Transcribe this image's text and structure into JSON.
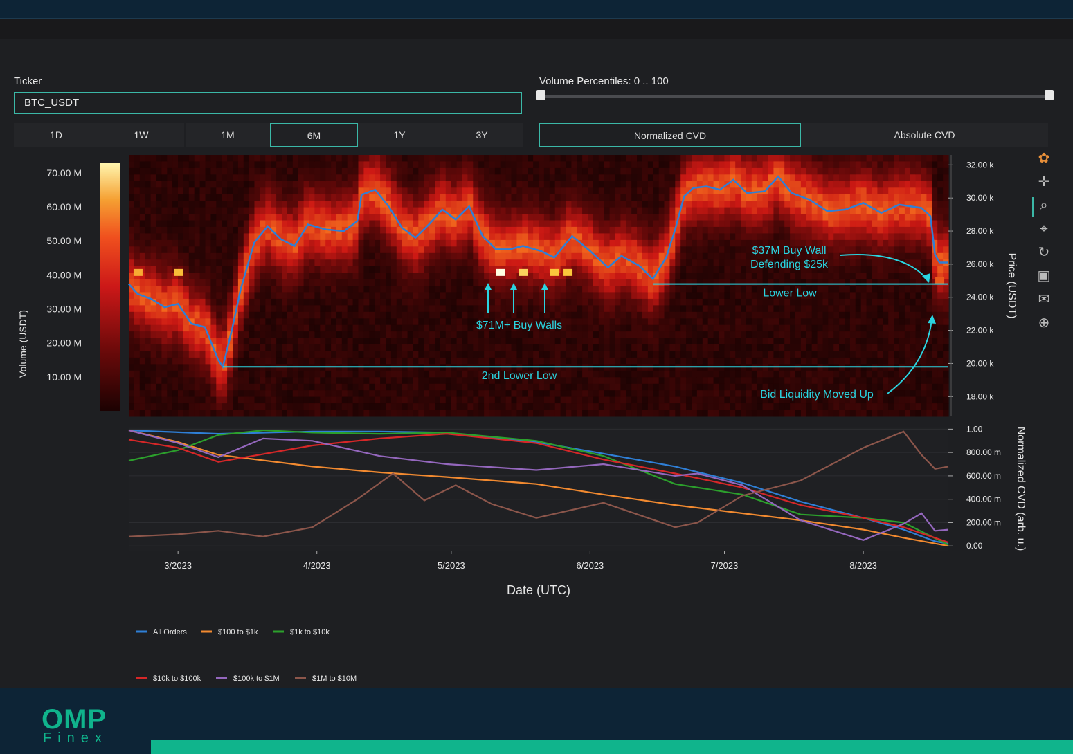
{
  "ticker": {
    "label": "Ticker",
    "value": "BTC_USDT"
  },
  "ranges": [
    "1D",
    "1W",
    "1M",
    "6M",
    "1Y",
    "3Y"
  ],
  "active_range": "6M",
  "percentiles": {
    "label": "Volume Percentiles: 0 .. 100",
    "min": 0,
    "max": 100
  },
  "cvd_modes": [
    "Normalized CVD",
    "Absolute CVD"
  ],
  "active_cvd_mode": "Normalized CVD",
  "logo": {
    "brand": "OMP",
    "sub": "Finex"
  },
  "colors": {
    "accent": "#3bb8a7",
    "annotation": "#2ad4e0",
    "price": "#2f7fd6"
  },
  "toolbar_icons": [
    "plotly-logo-icon",
    "pan-icon",
    "zoom-icon",
    "zoom-autoscale-icon",
    "reset-icon",
    "save-icon",
    "comment-icon",
    "crosshair-icon"
  ],
  "chart_data": [
    {
      "type": "heatmap",
      "colorbar_title": "Volume (USDT)",
      "colorbar_ticks": [
        "70.00 M",
        "60.00 M",
        "50.00 M",
        "40.00 M",
        "30.00 M",
        "20.00 M",
        "10.00 M"
      ],
      "colorbar_range": [
        0,
        73000000
      ],
      "ylabel": "Price (USDT)",
      "y_ticks": [
        "32.00 k",
        "30.00 k",
        "28.00 k",
        "26.00 k",
        "24.00 k",
        "22.00 k",
        "20.00 k",
        "18.00 k"
      ],
      "y_range": [
        16800,
        32600
      ],
      "x_range": [
        "2023-02-18",
        "2023-08-20"
      ],
      "price_series": [
        [
          "2023-02-18",
          24800
        ],
        [
          "2023-02-20",
          24200
        ],
        [
          "2023-02-23",
          23900
        ],
        [
          "2023-02-26",
          23400
        ],
        [
          "2023-03-01",
          23600
        ],
        [
          "2023-03-04",
          22400
        ],
        [
          "2023-03-07",
          22200
        ],
        [
          "2023-03-10",
          20200
        ],
        [
          "2023-03-11",
          19800
        ],
        [
          "2023-03-13",
          22000
        ],
        [
          "2023-03-15",
          24500
        ],
        [
          "2023-03-18",
          27300
        ],
        [
          "2023-03-21",
          28300
        ],
        [
          "2023-03-24",
          27500
        ],
        [
          "2023-03-27",
          27100
        ],
        [
          "2023-03-30",
          28400
        ],
        [
          "2023-04-03",
          28100
        ],
        [
          "2023-04-07",
          28000
        ],
        [
          "2023-04-10",
          28600
        ],
        [
          "2023-04-11",
          30200
        ],
        [
          "2023-04-14",
          30500
        ],
        [
          "2023-04-17",
          29500
        ],
        [
          "2023-04-20",
          28200
        ],
        [
          "2023-04-23",
          27600
        ],
        [
          "2023-04-26",
          28400
        ],
        [
          "2023-04-29",
          29300
        ],
        [
          "2023-05-02",
          28700
        ],
        [
          "2023-05-05",
          29500
        ],
        [
          "2023-05-08",
          27700
        ],
        [
          "2023-05-11",
          26900
        ],
        [
          "2023-05-14",
          26900
        ],
        [
          "2023-05-17",
          27100
        ],
        [
          "2023-05-21",
          26800
        ],
        [
          "2023-05-24",
          26400
        ],
        [
          "2023-05-28",
          27700
        ],
        [
          "2023-06-01",
          26800
        ],
        [
          "2023-06-05",
          25800
        ],
        [
          "2023-06-08",
          26500
        ],
        [
          "2023-06-12",
          25900
        ],
        [
          "2023-06-15",
          25100
        ],
        [
          "2023-06-18",
          26400
        ],
        [
          "2023-06-20",
          28100
        ],
        [
          "2023-06-22",
          30100
        ],
        [
          "2023-06-24",
          30600
        ],
        [
          "2023-06-27",
          30700
        ],
        [
          "2023-06-30",
          30500
        ],
        [
          "2023-07-03",
          31100
        ],
        [
          "2023-07-06",
          30300
        ],
        [
          "2023-07-10",
          30400
        ],
        [
          "2023-07-13",
          31300
        ],
        [
          "2023-07-16",
          30300
        ],
        [
          "2023-07-20",
          29900
        ],
        [
          "2023-07-24",
          29200
        ],
        [
          "2023-07-28",
          29300
        ],
        [
          "2023-08-01",
          29700
        ],
        [
          "2023-08-05",
          29100
        ],
        [
          "2023-08-09",
          29600
        ],
        [
          "2023-08-14",
          29400
        ],
        [
          "2023-08-16",
          28900
        ],
        [
          "2023-08-17",
          26600
        ],
        [
          "2023-08-18",
          26100
        ],
        [
          "2023-08-20",
          26100
        ]
      ],
      "levels": [
        {
          "label": "Lower Low",
          "price": 24800,
          "from": "2023-06-15",
          "to": "2023-08-20"
        },
        {
          "label": "2nd Lower Low",
          "price": 19800,
          "from": "2023-03-11",
          "to": "2023-08-20"
        }
      ],
      "annotations": [
        "$71M+ Buy Walls",
        "$37M Buy Wall\nDefending  $25k",
        "Bid Liquidity Moved Up"
      ]
    },
    {
      "type": "line",
      "xlabel": "Date (UTC)",
      "ylabel": "Normalized CVD (arb. u.)",
      "x_ticks": [
        "3/2023",
        "4/2023",
        "5/2023",
        "6/2023",
        "7/2023",
        "8/2023"
      ],
      "y_ticks": [
        "1.00",
        "800.00 m",
        "600.00 m",
        "400.00 m",
        "200.00 m",
        "0.00"
      ],
      "y_range": [
        -0.04,
        1.02
      ],
      "x_range": [
        "2023-02-18",
        "2023-08-20"
      ],
      "legend": "bottom-left",
      "series": [
        {
          "name": "All Orders",
          "color": "#2f7fd6",
          "points": [
            [
              "2023-02-18",
              0.99
            ],
            [
              "2023-03-10",
              0.96
            ],
            [
              "2023-03-31",
              0.98
            ],
            [
              "2023-04-15",
              0.98
            ],
            [
              "2023-04-30",
              0.97
            ],
            [
              "2023-05-20",
              0.89
            ],
            [
              "2023-06-04",
              0.79
            ],
            [
              "2023-06-20",
              0.68
            ],
            [
              "2023-07-05",
              0.54
            ],
            [
              "2023-07-18",
              0.38
            ],
            [
              "2023-08-01",
              0.24
            ],
            [
              "2023-08-10",
              0.14
            ],
            [
              "2023-08-17",
              0.04
            ],
            [
              "2023-08-20",
              0.02
            ]
          ]
        },
        {
          "name": "$100 to $1k",
          "color": "#f28a30",
          "points": [
            [
              "2023-02-18",
              0.99
            ],
            [
              "2023-03-01",
              0.89
            ],
            [
              "2023-03-10",
              0.78
            ],
            [
              "2023-03-31",
              0.68
            ],
            [
              "2023-04-15",
              0.63
            ],
            [
              "2023-04-30",
              0.59
            ],
            [
              "2023-05-20",
              0.53
            ],
            [
              "2023-06-04",
              0.44
            ],
            [
              "2023-06-20",
              0.35
            ],
            [
              "2023-07-05",
              0.28
            ],
            [
              "2023-07-18",
              0.22
            ],
            [
              "2023-08-01",
              0.14
            ],
            [
              "2023-08-10",
              0.07
            ],
            [
              "2023-08-20",
              0.0
            ]
          ]
        },
        {
          "name": "$1k to $10k",
          "color": "#2ca02c",
          "points": [
            [
              "2023-02-18",
              0.73
            ],
            [
              "2023-03-01",
              0.82
            ],
            [
              "2023-03-10",
              0.95
            ],
            [
              "2023-03-20",
              0.99
            ],
            [
              "2023-03-31",
              0.97
            ],
            [
              "2023-04-15",
              0.96
            ],
            [
              "2023-04-30",
              0.97
            ],
            [
              "2023-05-20",
              0.9
            ],
            [
              "2023-06-04",
              0.77
            ],
            [
              "2023-06-20",
              0.53
            ],
            [
              "2023-07-05",
              0.44
            ],
            [
              "2023-07-18",
              0.27
            ],
            [
              "2023-08-01",
              0.24
            ],
            [
              "2023-08-10",
              0.2
            ],
            [
              "2023-08-20",
              0.01
            ]
          ]
        },
        {
          "name": "$10k to $100k",
          "color": "#d62728",
          "points": [
            [
              "2023-02-18",
              0.91
            ],
            [
              "2023-03-01",
              0.84
            ],
            [
              "2023-03-10",
              0.72
            ],
            [
              "2023-03-31",
              0.86
            ],
            [
              "2023-04-15",
              0.92
            ],
            [
              "2023-04-30",
              0.96
            ],
            [
              "2023-05-20",
              0.88
            ],
            [
              "2023-06-04",
              0.74
            ],
            [
              "2023-06-20",
              0.62
            ],
            [
              "2023-07-05",
              0.5
            ],
            [
              "2023-07-18",
              0.35
            ],
            [
              "2023-08-01",
              0.24
            ],
            [
              "2023-08-10",
              0.16
            ],
            [
              "2023-08-17",
              0.07
            ],
            [
              "2023-08-20",
              0.03
            ]
          ]
        },
        {
          "name": "$100k to $1M",
          "color": "#9467bd",
          "points": [
            [
              "2023-02-18",
              0.99
            ],
            [
              "2023-03-01",
              0.88
            ],
            [
              "2023-03-10",
              0.76
            ],
            [
              "2023-03-20",
              0.92
            ],
            [
              "2023-03-31",
              0.9
            ],
            [
              "2023-04-15",
              0.77
            ],
            [
              "2023-04-30",
              0.7
            ],
            [
              "2023-05-20",
              0.65
            ],
            [
              "2023-06-04",
              0.7
            ],
            [
              "2023-06-20",
              0.6
            ],
            [
              "2023-06-25",
              0.62
            ],
            [
              "2023-07-05",
              0.52
            ],
            [
              "2023-07-18",
              0.22
            ],
            [
              "2023-08-01",
              0.05
            ],
            [
              "2023-08-10",
              0.19
            ],
            [
              "2023-08-14",
              0.28
            ],
            [
              "2023-08-17",
              0.13
            ],
            [
              "2023-08-20",
              0.14
            ]
          ]
        },
        {
          "name": "$1M to $10M",
          "color": "#8c564b",
          "points": [
            [
              "2023-02-18",
              0.08
            ],
            [
              "2023-03-01",
              0.1
            ],
            [
              "2023-03-10",
              0.13
            ],
            [
              "2023-03-20",
              0.08
            ],
            [
              "2023-03-31",
              0.16
            ],
            [
              "2023-04-10",
              0.4
            ],
            [
              "2023-04-18",
              0.62
            ],
            [
              "2023-04-25",
              0.39
            ],
            [
              "2023-05-02",
              0.52
            ],
            [
              "2023-05-10",
              0.36
            ],
            [
              "2023-05-20",
              0.24
            ],
            [
              "2023-06-04",
              0.37
            ],
            [
              "2023-06-20",
              0.16
            ],
            [
              "2023-06-25",
              0.2
            ],
            [
              "2023-07-05",
              0.43
            ],
            [
              "2023-07-18",
              0.56
            ],
            [
              "2023-08-01",
              0.84
            ],
            [
              "2023-08-10",
              0.98
            ],
            [
              "2023-08-14",
              0.78
            ],
            [
              "2023-08-17",
              0.66
            ],
            [
              "2023-08-20",
              0.68
            ]
          ]
        }
      ]
    }
  ]
}
